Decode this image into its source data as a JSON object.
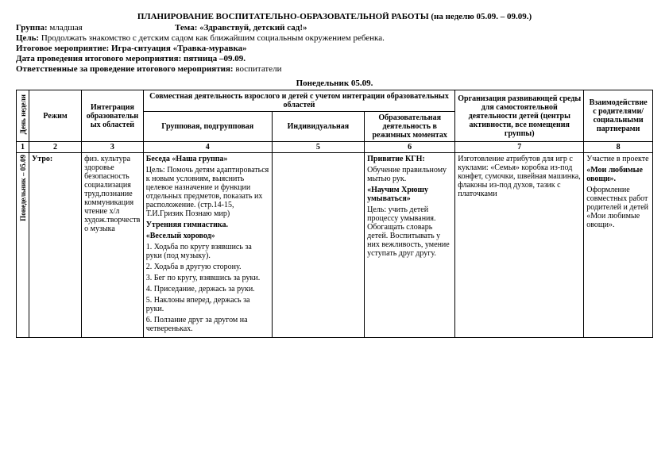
{
  "header": {
    "title": "ПЛАНИРОВАНИЕ ВОСПИТАТЕЛЬНО-ОБРАЗОВАТЕЛЬНОЙ РАБОТЫ (на неделю 05.09. – 09.09.)",
    "group_label": "Группа:",
    "group_value": "младшая",
    "theme_label": "Тема:",
    "theme_value": "«Здравствуй, детский сад!»",
    "goal_label": "Цель:",
    "goal_value": "Продолжать знакомство с детским садом как ближайшим социальным окружением ребенка.",
    "event_label": "Итоговое мероприятие:",
    "event_value": "Игра-ситуация «Травка-муравка»",
    "event_date_label": "Дата проведения итогового мероприятия:",
    "event_date_value": "пятница –09.09.",
    "responsible_label": "Ответственные за проведение итогового мероприятия:",
    "responsible_value": "воспитатели",
    "day_header": "Понедельник  05.09."
  },
  "table": {
    "headers": {
      "c1": "День недели",
      "c2": "Режим",
      "c3": "Интеграция образовательных областей",
      "c4_group": "Совместная деятельность взрослого и детей с учетом интеграции образовательных областей",
      "c4": "Групповая, подгрупповая",
      "c5": "Индивидуальная",
      "c6": "Образовательная деятельность в режимных моментах",
      "c7": "Организация развивающей среды для самостоятельной деятельности детей (центры активности, все помещения группы)",
      "c8": "Взаимодействие с родителями/ социальными партнерами"
    },
    "numrow": {
      "n1": "1",
      "n2": "2",
      "n3": "3",
      "n4": "4",
      "n5": "5",
      "n6": "6",
      "n7": "7",
      "n8": "8"
    },
    "row": {
      "day": "Понедельник –  05.09",
      "regime": "Утро:",
      "integration": "физ. культура здоровье безопасность социализация труд,познание коммуникация чтение х/л худож.творчество музыка",
      "group_bold1": "Беседа «Наша группа»",
      "group_p1": "Цель: Помочь детям адаптироваться к новым условиям, выяснить целевое назначение и функции отдельных предметов, показать их расположение. (стр.14-15, Т.И.Гризик Познаю мир)",
      "group_bold2": "Утренняя гимнастика.",
      "group_bold3": "«Веселый хоровод»",
      "group_l1": "1. Ходьба по кругу взявшись за руки (под музыку).",
      "group_l2": "2. Ходьба в другую сторону.",
      "group_l3": "3. Бег по кругу, взявшись за руки.",
      "group_l4": "4. Приседание, держась за руки.",
      "group_l5": "5. Наклоны вперед, держась за руки.",
      "group_l6": "6. Ползание друг за другом на четвереньках.",
      "individual": "",
      "routine_b1": "Привитие КГН:",
      "routine_p1": "Обучение правильному мытью рук.",
      "routine_b2": "«Научим Хрюшу умываться»",
      "routine_p2": "Цель: учить детей процессу умывания. Обогащать словарь детей. Воспитывать у них вежливость, умение уступать друг другу.",
      "env": "Изготовление атрибутов для игр с куклами: «Семья» коробка из-под конфет, сумочки, швейная машинка, флаконы из-под духов, тазик с платочками",
      "parents_p1": "Участие в проекте",
      "parents_b1": "«Мои любимые овощи».",
      "parents_p2": "Оформление совместных работ родителей и детей «Мои любимые овощи»."
    }
  }
}
